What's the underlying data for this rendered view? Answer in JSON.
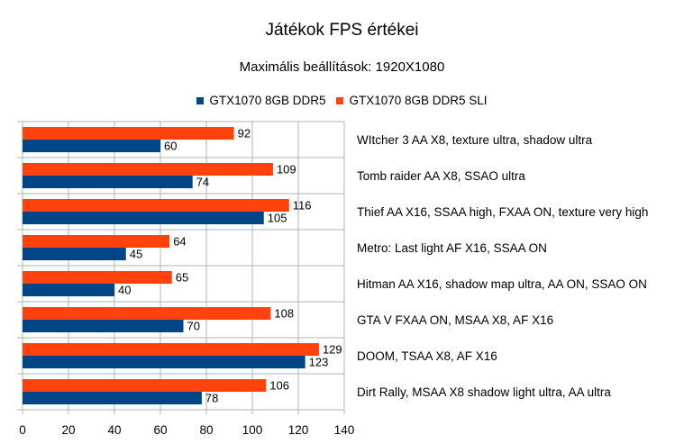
{
  "chart_data": {
    "type": "bar",
    "orientation": "horizontal",
    "title": "Játékok FPS értékei",
    "subtitle": "Maximális beállítások: 1920X1080",
    "categories": [
      "WItcher 3 AA X8, texture ultra, shadow ultra",
      "Tomb raider AA X8, SSAO ultra",
      "Thief AA X16, SSAA high, FXAA ON, texture very high",
      "Metro: Last light AF X16, SSAA ON",
      "Hitman AA X16, shadow map ultra, AA ON, SSAO ON",
      "GTA V FXAA ON, MSAA X8, AF X16",
      "DOOM, TSAA X8, AF X16",
      "Dirt Rally, MSAA X8 shadow light ultra, AA ultra"
    ],
    "series": [
      {
        "name": "GTX1070 8GB DDR5",
        "color": "#004586",
        "values": [
          60,
          74,
          105,
          45,
          40,
          70,
          123,
          78
        ]
      },
      {
        "name": "GTX1070 8GB DDR5 SLI",
        "color": "#ff420e",
        "values": [
          92,
          109,
          116,
          64,
          65,
          108,
          129,
          106
        ]
      }
    ],
    "xlim": [
      0,
      140
    ],
    "xticks": [
      "0",
      "20",
      "40",
      "60",
      "80",
      "100",
      "120",
      "140"
    ],
    "grid": true,
    "legend_position": "top"
  }
}
